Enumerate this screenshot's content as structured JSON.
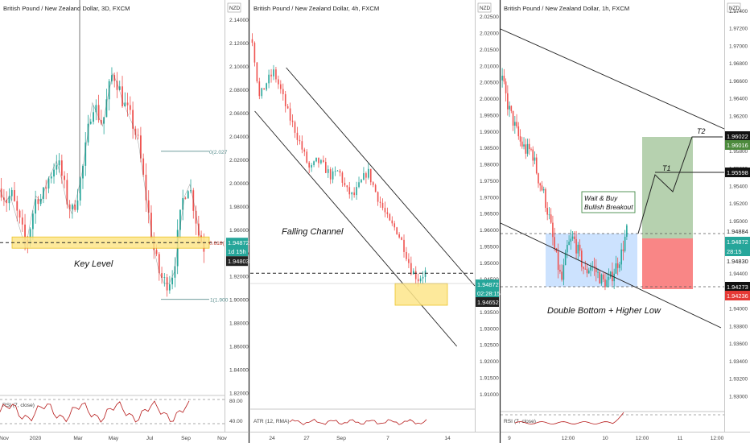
{
  "colors": {
    "up": "#26a69a",
    "down": "#ef5350",
    "ma": "#1e1e1e",
    "key_level": "#fde68a",
    "zone_blue": "#bfdbfe",
    "target_green": "#86b37a",
    "stop_red": "#f87171",
    "rsi_line": "#b71c1c",
    "atr_line": "#b71c1c"
  },
  "panels": [
    {
      "title": "British Pound / New Zealand Dollar, 3D, FXCM",
      "currency": "NZD",
      "annotation": "Key Level",
      "fib_labels": [
        "0(2.027",
        "0.618(",
        "1(1.900"
      ],
      "price_tags": [
        "1.94872",
        "1d 15h",
        "1.94803"
      ],
      "indicator": "RSI (7, close)",
      "indicator_ticks": [
        "80.00",
        "40.00"
      ],
      "x_ticks": [
        "Nov",
        "2020",
        "Mar",
        "May",
        "Jul",
        "Sep",
        "Nov"
      ],
      "y_ticks": [
        "2.14000",
        "2.12000",
        "2.10000",
        "2.08000",
        "2.06000",
        "2.04000",
        "2.02000",
        "2.00000",
        "1.98000",
        "1.96000",
        "1.94000",
        "1.92000",
        "1.90000",
        "1.88000",
        "1.86000",
        "1.84000",
        "1.82000"
      ]
    },
    {
      "title": "British Pound / New Zealand Dollar, 4h, FXCM",
      "currency": "NZD",
      "annotation": "Falling Channel",
      "price_tags": [
        "1.94872",
        "02:28:15",
        "1.94652"
      ],
      "indicator": "ATR (12, RMA)",
      "x_ticks": [
        "24",
        "27",
        "Sep",
        "7",
        "14"
      ],
      "y_ticks": [
        "2.02500",
        "2.02000",
        "2.01500",
        "2.01000",
        "2.00500",
        "2.00000",
        "1.99500",
        "1.99000",
        "1.98500",
        "1.98000",
        "1.97500",
        "1.97000",
        "1.96500",
        "1.96000",
        "1.95500",
        "1.95000",
        "1.94500",
        "1.94000",
        "1.93500",
        "1.93000",
        "1.92500",
        "1.92000",
        "1.91500",
        "1.91000"
      ]
    },
    {
      "title": "British Pound / New Zealand Dollar, 1h, FXCM",
      "currency": "NZD",
      "annotations": {
        "pattern": "Double Bottom + Higher Low",
        "callout_line1": "Wait & Buy",
        "callout_line2": "Bullish Breakout",
        "t1": "T1",
        "t2": "T2"
      },
      "price_tags": [
        "1.96022",
        "1.96016",
        "1.95598",
        "1.94884",
        "1.94872",
        "28:15",
        "1.94830",
        "1.94273",
        "1.94236"
      ],
      "indicator": "RSI (7, close)",
      "x_ticks": [
        "9",
        "12:00",
        "10",
        "12:00",
        "11",
        "12:00"
      ],
      "y_ticks": [
        "1.97400",
        "1.97200",
        "1.97000",
        "1.96800",
        "1.96600",
        "1.96400",
        "1.96200",
        "1.96000",
        "1.95800",
        "1.95600",
        "1.95400",
        "1.95200",
        "1.95000",
        "1.94800",
        "1.94600",
        "1.94400",
        "1.94200",
        "1.94000",
        "1.93800",
        "1.93600",
        "1.93400",
        "1.93200",
        "1.93000"
      ]
    }
  ],
  "chart_data": [
    {
      "type": "candlestick",
      "timeframe": "3D",
      "title": "British Pound / New Zealand Dollar, 3D, FXCM",
      "ylim": [
        1.81,
        2.145
      ],
      "close_path": [
        1.995,
        1.985,
        1.99,
        1.975,
        1.96,
        1.945,
        1.97,
        1.99,
        1.985,
        2.0,
        2.01,
        2.02,
        2.005,
        1.985,
        1.975,
        1.99,
        2.01,
        2.04,
        2.07,
        2.06,
        2.05,
        2.075,
        2.095,
        2.085,
        2.07,
        2.06,
        2.05,
        2.035,
        2.005,
        1.975,
        1.945,
        1.925,
        1.915,
        1.915,
        1.925,
        1.96,
        1.99,
        2.0,
        1.98,
        1.955,
        1.945
      ],
      "key_level": 1.9487,
      "fib": [
        {
          "label": "0",
          "value": 2.027
        },
        {
          "label": "0.618",
          "value": 1.9487
        },
        {
          "label": "1",
          "value": 1.9
        }
      ],
      "last_price": 1.94872
    },
    {
      "type": "candlestick",
      "timeframe": "4h",
      "title": "British Pound / New Zealand Dollar, 4h, FXCM",
      "ylim": [
        1.908,
        2.028
      ],
      "close_path": [
        2.018,
        2.0,
        2.005,
        2.008,
        2.002,
        1.995,
        1.99,
        1.984,
        1.978,
        1.981,
        1.979,
        1.976,
        1.978,
        1.972,
        1.97,
        1.974,
        1.978,
        1.972,
        1.967,
        1.962,
        1.96,
        1.955,
        1.948,
        1.945,
        1.947
      ],
      "channel_upper": [
        [
          0.16,
          2.0105
        ],
        [
          1.0,
          1.9575
        ]
      ],
      "channel_lower": [
        [
          0.02,
          2.0035
        ],
        [
          0.92,
          1.9345
        ]
      ],
      "support_level": 1.9467,
      "last_price": 1.94872
    },
    {
      "type": "candlestick",
      "timeframe": "1h",
      "title": "British Pound / New Zealand Dollar, 1h, FXCM",
      "ylim": [
        1.928,
        1.975
      ],
      "close_path": [
        1.966,
        1.963,
        1.961,
        1.959,
        1.958,
        1.958,
        1.955,
        1.953,
        1.95,
        1.946,
        1.943,
        1.947,
        1.948,
        1.946,
        1.944,
        1.945,
        1.944,
        1.943,
        1.943,
        1.9445,
        1.946,
        1.9488
      ],
      "resistance": 1.94884,
      "support": 1.94273,
      "targets": {
        "T1": 1.95598,
        "T2": 1.96022
      },
      "stop": 1.94236,
      "last_price": 1.94872
    }
  ]
}
